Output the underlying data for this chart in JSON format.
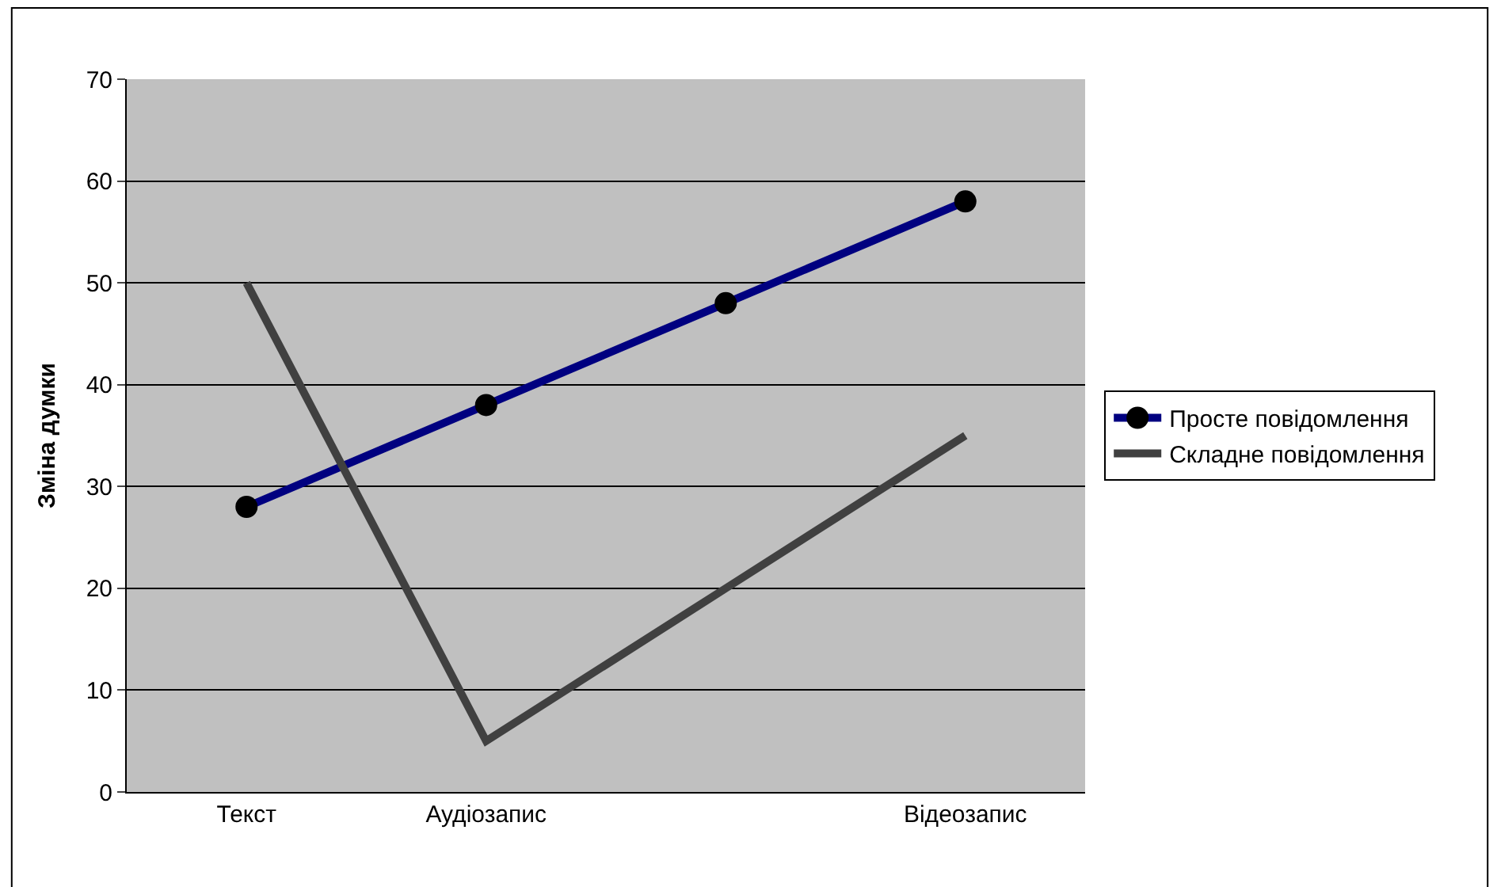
{
  "chart_data": {
    "type": "line",
    "ylabel": "Зміна думки",
    "categories": [
      "Текст",
      "Аудіозапис",
      null,
      "Відеозапис"
    ],
    "series": [
      {
        "name": "Просте повідомлення",
        "color": "#000080",
        "values": [
          28,
          38,
          48,
          58
        ],
        "marker": "circle"
      },
      {
        "name": "Складне повідомлення",
        "color": "#404040",
        "values": [
          50,
          5,
          20,
          35
        ],
        "marker": "none"
      }
    ],
    "ylim": [
      0,
      70
    ],
    "yticks": [
      0,
      10,
      20,
      30,
      40,
      50,
      60,
      70
    ],
    "grid": "y",
    "legend": "right",
    "line_style": "solid"
  }
}
